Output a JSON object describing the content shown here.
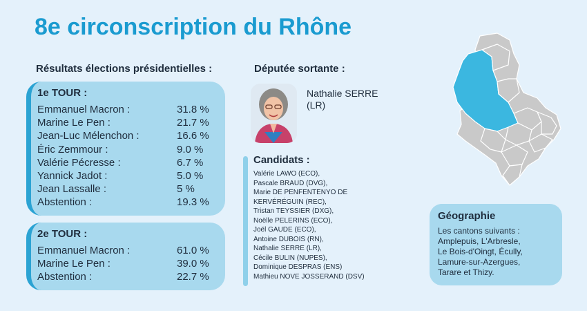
{
  "title": "8e circonscription du Rhône",
  "results_heading": "Résultats élections présidentielles :",
  "deputy_heading": "Députée sortante :",
  "round1": {
    "label": "1e TOUR :",
    "rows": [
      {
        "name": "Emmanuel Macron :",
        "value": "31.8 %"
      },
      {
        "name": "Marine Le Pen :",
        "value": "21.7 %"
      },
      {
        "name": "Jean-Luc Mélenchon :",
        "value": "16.6 %"
      },
      {
        "name": "Éric Zemmour :",
        "value": "9.0 %"
      },
      {
        "name": "Valérie Pécresse :",
        "value": "6.7 %"
      },
      {
        "name": "Yannick Jadot :",
        "value": "5.0 %"
      },
      {
        "name": "Jean Lassalle :",
        "value": "5 %"
      },
      {
        "name": "Abstention :",
        "value": "19.3 %"
      }
    ]
  },
  "round2": {
    "label": "2e TOUR :",
    "rows": [
      {
        "name": "Emmanuel Macron :",
        "value": "61.0 %"
      },
      {
        "name": "Marine Le Pen :",
        "value": "39.0 %"
      },
      {
        "name": "Abstention :",
        "value": "22.7 %"
      }
    ]
  },
  "deputy": {
    "name_line1": "Nathalie SERRE",
    "name_line2": "(LR)"
  },
  "candidates": {
    "heading": "Candidats :",
    "items": [
      "Valérie LAWO (ECO),",
      "Pascale BRAUD (DVG),",
      "Marie DE PENFENTENYO DE",
      "KERVÉRÉGUIN (REC),",
      "Tristan TEYSSIER (DXG),",
      "Noëlle PELERINS (ECO),",
      "Joël GAUDE (ECO),",
      "Antoine DUBOIS (RN),",
      "Nathalie SERRE (LR),",
      "Cécile BULIN (NUPES),",
      "Dominique DESPRAS (ENS)",
      "Mathieu NOVE JOSSERAND (DSV)"
    ]
  },
  "geography": {
    "heading": "Géographie",
    "lines": [
      "Les cantons suivants :",
      "Amplepuis, L'Arbresle,",
      "Le Bois-d'Oingt, Écully,",
      "Lamure-sur-Azergues,",
      "Tarare et Thizy."
    ]
  },
  "colors": {
    "accent": "#1a9bd0",
    "box": "#a8d9ee",
    "background": "#e4f1fb",
    "map_highlight": "#3bb7e0",
    "map_base": "#c9c9c9"
  }
}
